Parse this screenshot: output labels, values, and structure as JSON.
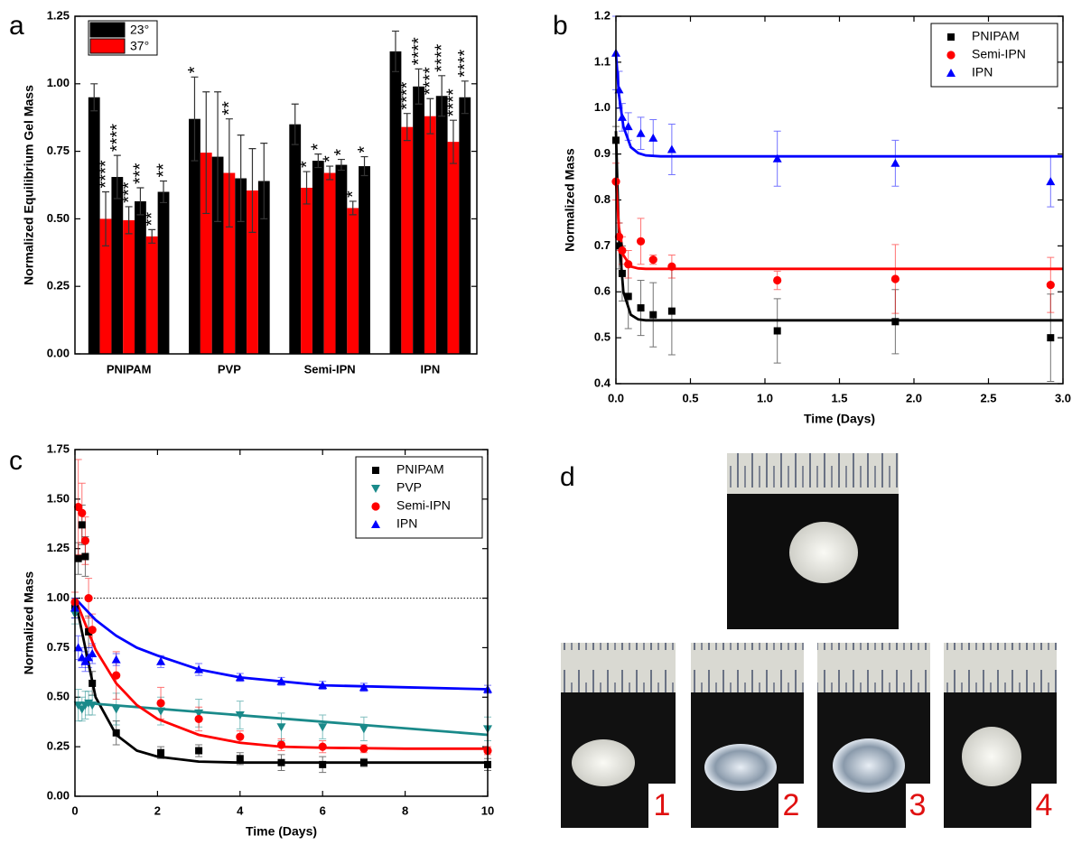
{
  "chart_data": [
    {
      "type": "bar",
      "panel_label": "a",
      "ylabel": "Normalized Equilibrium Gel Mass",
      "categories": [
        "PNIPAM",
        "PVP",
        "Semi-IPN",
        "IPN"
      ],
      "series": [
        {
          "name": "23°",
          "color": "#000000",
          "values": [
            [
              0.95,
              0.655,
              0.565,
              0.6
            ],
            [
              0.87,
              0.73,
              0.65,
              0.64
            ],
            [
              0.85,
              0.715,
              0.7,
              0.695
            ],
            [
              1.12,
              0.99,
              0.955,
              0.95
            ]
          ],
          "errors": [
            [
              0.05,
              0.08,
              0.05,
              0.04
            ],
            [
              0.155,
              0.24,
              0.16,
              0.14
            ],
            [
              0.075,
              0.025,
              0.02,
              0.035
            ],
            [
              0.075,
              0.065,
              0.075,
              0.06
            ]
          ],
          "annotations": [
            [
              null,
              "****",
              "***",
              "**"
            ],
            [
              "*",
              null,
              null,
              null
            ],
            [
              null,
              "*",
              "*",
              "*"
            ],
            [
              null,
              "****",
              "****",
              "****"
            ]
          ]
        },
        {
          "name": "37°",
          "color": "#ff0000",
          "values": [
            [
              0.5,
              0.495,
              0.435
            ],
            [
              0.745,
              0.67,
              0.605
            ],
            [
              0.615,
              0.67,
              0.54
            ],
            [
              0.84,
              0.88,
              0.785
            ]
          ],
          "errors": [
            [
              0.1,
              0.05,
              0.025
            ],
            [
              0.225,
              0.2,
              0.155
            ],
            [
              0.06,
              0.025,
              0.025
            ],
            [
              0.05,
              0.065,
              0.08
            ]
          ],
          "annotations": [
            [
              "****",
              "***",
              "**"
            ],
            [
              null,
              "**",
              null
            ],
            [
              "*",
              "*",
              "*"
            ],
            [
              "****",
              "****",
              "****"
            ]
          ]
        }
      ],
      "ylim": [
        0,
        1.25
      ],
      "yticks": [
        {
          "value": 0,
          "label": "0.00"
        },
        {
          "value": 0.25,
          "label": "0.25"
        },
        {
          "value": 0.5,
          "label": "0.50"
        },
        {
          "value": 0.75,
          "label": "0.75"
        },
        {
          "value": 1,
          "label": "1.00"
        },
        {
          "value": 1.25,
          "label": "1.25"
        }
      ],
      "legend": "upper left"
    },
    {
      "type": "scatter",
      "panel_label": "b",
      "xlabel": "Time (Days)",
      "ylabel": "Normalized Mass",
      "series": [
        {
          "name": "PNIPAM",
          "color": "#000000",
          "marker": "square",
          "x": [
            0,
            0.021,
            0.042,
            0.083,
            0.167,
            0.25,
            0.375,
            1.083,
            1.875,
            2.917
          ],
          "values": [
            0.93,
            0.7,
            0.64,
            0.59,
            0.565,
            0.55,
            0.558,
            0.515,
            0.535,
            0.5
          ],
          "errors": [
            0.03,
            0.05,
            0.06,
            0.07,
            0.06,
            0.07,
            0.095,
            0.07,
            0.07,
            0.095
          ],
          "fit_x": [
            0,
            0.02,
            0.05,
            0.1,
            0.15,
            0.2,
            0.3,
            0.5,
            1,
            3
          ],
          "fit_values": [
            0.95,
            0.72,
            0.6,
            0.55,
            0.54,
            0.538,
            0.538,
            0.538,
            0.538,
            0.538
          ]
        },
        {
          "name": "Semi-IPN",
          "color": "#ff0000",
          "marker": "circle",
          "x": [
            0,
            0.021,
            0.042,
            0.083,
            0.167,
            0.25,
            0.375,
            1.083,
            1.875,
            2.917
          ],
          "values": [
            0.84,
            0.72,
            0.69,
            0.66,
            0.71,
            0.67,
            0.655,
            0.625,
            0.628,
            0.615
          ],
          "errors": [
            0.04,
            0.03,
            0.03,
            0.03,
            0.05,
            0.01,
            0.025,
            0.02,
            0.075,
            0.06
          ],
          "fit_x": [
            0,
            0.02,
            0.05,
            0.1,
            0.15,
            0.2,
            0.3,
            0.5,
            1,
            3
          ],
          "fit_values": [
            0.84,
            0.74,
            0.68,
            0.655,
            0.651,
            0.65,
            0.65,
            0.65,
            0.65,
            0.65
          ]
        },
        {
          "name": "IPN",
          "color": "#0000ff",
          "marker": "triangle",
          "x": [
            0,
            0.021,
            0.042,
            0.083,
            0.167,
            0.25,
            0.375,
            1.083,
            1.875,
            2.917
          ],
          "values": [
            1.12,
            1.04,
            0.98,
            0.96,
            0.945,
            0.935,
            0.91,
            0.89,
            0.88,
            0.84
          ],
          "errors": [
            0.08,
            0.04,
            0.03,
            0.03,
            0.035,
            0.04,
            0.055,
            0.06,
            0.05,
            0.055
          ],
          "fit_x": [
            0,
            0.02,
            0.05,
            0.1,
            0.15,
            0.2,
            0.3,
            0.5,
            1,
            3
          ],
          "fit_values": [
            1.12,
            1.03,
            0.96,
            0.915,
            0.902,
            0.897,
            0.895,
            0.895,
            0.895,
            0.895
          ]
        }
      ],
      "xlim": [
        0,
        3
      ],
      "xticks": [
        {
          "value": 0,
          "label": "0.0"
        },
        0.5,
        {
          "value": 1,
          "label": "1.0"
        },
        1.5,
        {
          "value": 2,
          "label": "2.0"
        },
        2.5,
        {
          "value": 3,
          "label": "3.0"
        }
      ],
      "ylim": [
        0.4,
        1.2
      ],
      "yticks": [
        0.4,
        0.5,
        0.6,
        0.7,
        0.8,
        0.9,
        {
          "value": 1,
          "label": "1.0"
        },
        1.1,
        1.2
      ],
      "legend": "upper right"
    },
    {
      "type": "scatter",
      "panel_label": "c",
      "xlabel": "Time (Days)",
      "ylabel": "Normalized Mass",
      "series": [
        {
          "name": "PNIPAM",
          "color": "#000000",
          "marker": "square",
          "x": [
            0,
            0.08,
            0.17,
            0.25,
            0.33,
            0.42,
            1,
            2.08,
            3,
            4,
            5,
            6,
            7,
            10
          ],
          "values": [
            0.95,
            1.2,
            1.37,
            1.21,
            0.83,
            0.57,
            0.32,
            0.22,
            0.23,
            0.19,
            0.17,
            0.16,
            0.17,
            0.16
          ],
          "errors": [
            0.05,
            0.08,
            0.1,
            0.1,
            0.08,
            0.06,
            0.06,
            0.03,
            0.03,
            0.03,
            0.04,
            0.04,
            0.02,
            0.03
          ],
          "fit_x": [
            0,
            0.5,
            1,
            1.5,
            2,
            3,
            4,
            5,
            6,
            8,
            10
          ],
          "fit_values": [
            1,
            0.5,
            0.31,
            0.23,
            0.2,
            0.175,
            0.17,
            0.17,
            0.17,
            0.17,
            0.17
          ]
        },
        {
          "name": "PVP",
          "color": "#1a8a8a",
          "marker": "triangle-down",
          "x": [
            0,
            0.08,
            0.17,
            0.25,
            0.33,
            0.42,
            1,
            2.08,
            3,
            4,
            5,
            6,
            7,
            10
          ],
          "values": [
            0.92,
            0.46,
            0.44,
            0.46,
            0.47,
            0.46,
            0.44,
            0.43,
            0.42,
            0.41,
            0.35,
            0.35,
            0.34,
            0.34
          ],
          "errors": [
            0.05,
            0.08,
            0.06,
            0.07,
            0.06,
            0.05,
            0.08,
            0.07,
            0.07,
            0.07,
            0.07,
            0.06,
            0.06,
            0.06
          ],
          "fit_x": [
            0.3,
            10
          ],
          "fit_values": [
            0.47,
            0.31
          ]
        },
        {
          "name": "Semi-IPN",
          "color": "#ff0000",
          "marker": "circle",
          "x": [
            0,
            0.08,
            0.17,
            0.25,
            0.33,
            0.42,
            1,
            2.08,
            3,
            4,
            5,
            6,
            7,
            10
          ],
          "values": [
            0.98,
            1.46,
            1.43,
            1.29,
            1,
            0.84,
            0.61,
            0.47,
            0.39,
            0.3,
            0.26,
            0.25,
            0.24,
            0.23
          ],
          "errors": [
            0.05,
            0.24,
            0.15,
            0.12,
            0.1,
            0.08,
            0.12,
            0.08,
            0.06,
            0.03,
            0.03,
            0.03,
            0.02,
            0.02
          ],
          "fit_x": [
            0,
            0.5,
            1,
            1.5,
            2,
            3,
            4,
            5,
            6,
            8,
            10
          ],
          "fit_values": [
            1,
            0.74,
            0.57,
            0.46,
            0.39,
            0.31,
            0.27,
            0.25,
            0.245,
            0.24,
            0.24
          ]
        },
        {
          "name": "IPN",
          "color": "#0000ff",
          "marker": "triangle",
          "x": [
            0,
            0.08,
            0.17,
            0.25,
            0.33,
            0.42,
            1,
            2.08,
            3,
            4,
            5,
            6,
            7,
            10
          ],
          "values": [
            0.95,
            0.75,
            0.7,
            0.68,
            0.7,
            0.72,
            0.69,
            0.68,
            0.64,
            0.6,
            0.58,
            0.56,
            0.55,
            0.54
          ],
          "errors": [
            0.05,
            0.06,
            0.05,
            0.05,
            0.05,
            0.05,
            0.03,
            0.03,
            0.03,
            0.02,
            0.02,
            0.02,
            0.02,
            0.02
          ],
          "fit_x": [
            0,
            0.5,
            1,
            1.5,
            2,
            3,
            4,
            5,
            6,
            8,
            10
          ],
          "fit_values": [
            1,
            0.89,
            0.81,
            0.75,
            0.71,
            0.64,
            0.6,
            0.58,
            0.56,
            0.55,
            0.54
          ]
        }
      ],
      "xlim": [
        0,
        10
      ],
      "xticks": [
        0,
        2,
        4,
        6,
        8,
        10
      ],
      "ylim": [
        0,
        1.75
      ],
      "yticks": [
        {
          "value": 0,
          "label": "0.00"
        },
        {
          "value": 0.25,
          "label": "0.25"
        },
        {
          "value": 0.5,
          "label": "0.50"
        },
        {
          "value": 0.75,
          "label": "0.75"
        },
        {
          "value": 1,
          "label": "1.00"
        },
        {
          "value": 1.25,
          "label": "1.25"
        },
        {
          "value": 1.5,
          "label": "1.50"
        },
        {
          "value": 1.75,
          "label": "1.75"
        }
      ],
      "reference_line": 1,
      "legend": "upper right"
    }
  ],
  "photos": {
    "label": "d",
    "numbers": [
      "1",
      "2",
      "3",
      "4"
    ]
  }
}
